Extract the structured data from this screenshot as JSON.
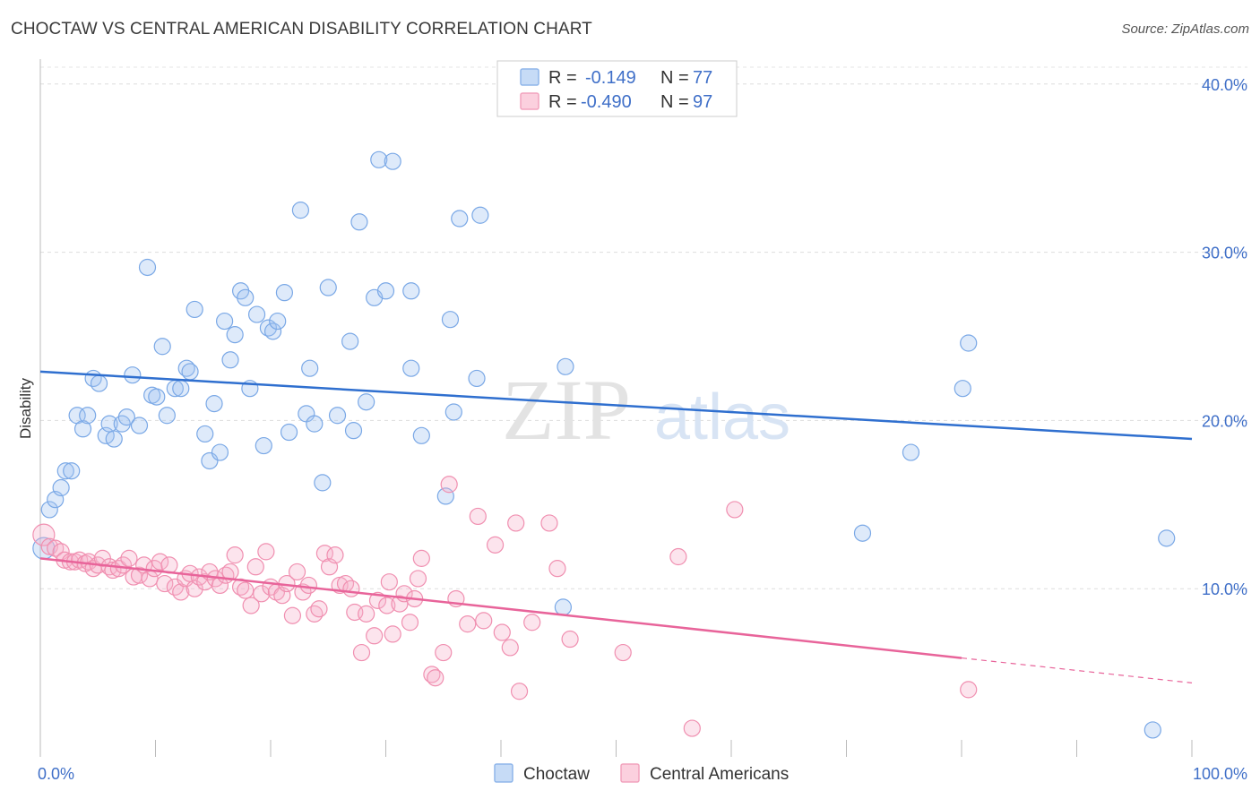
{
  "title": "CHOCTAW VS CENTRAL AMERICAN DISABILITY CORRELATION CHART",
  "source": "Source: ZipAtlas.com",
  "watermark": {
    "zip": "ZIP",
    "atlas": "atlas"
  },
  "legend_box": {
    "rows": [
      {
        "r_label": "R =",
        "r_value": "-0.149",
        "n_label": "N =",
        "n_value": "77",
        "color": "#8fb6ea"
      },
      {
        "r_label": "R =",
        "r_value": "-0.490",
        "n_label": "N =",
        "n_value": "97",
        "color": "#f2a3bd"
      }
    ]
  },
  "bottom_legend": [
    {
      "label": "Choctaw",
      "color": "#8fb6ea"
    },
    {
      "label": "Central Americans",
      "color": "#f2a3bd"
    }
  ],
  "chart_data": {
    "type": "scatter",
    "ylabel": "Disability",
    "xlabel": "",
    "x_tick_labels": [
      "0.0%",
      "100.0%"
    ],
    "y_tick_labels": [
      "10.0%",
      "20.0%",
      "30.0%",
      "40.0%"
    ],
    "xlim": [
      0,
      100
    ],
    "ylim": [
      0,
      41
    ],
    "grid": true,
    "legend_placement": "top-center",
    "series": [
      {
        "name": "Choctaw",
        "color": "#7aa8e6",
        "trend": {
          "x": [
            0,
            100
          ],
          "y": [
            22.9,
            18.9
          ],
          "color": "#2f6fcf"
        },
        "points": [
          [
            0.3,
            12.4
          ],
          [
            0.8,
            14.7
          ],
          [
            1.3,
            15.3
          ],
          [
            1.8,
            16.0
          ],
          [
            2.2,
            17.0
          ],
          [
            2.7,
            17.0
          ],
          [
            3.2,
            20.3
          ],
          [
            3.7,
            19.5
          ],
          [
            4.1,
            20.3
          ],
          [
            4.6,
            22.5
          ],
          [
            5.1,
            22.2
          ],
          [
            5.7,
            19.1
          ],
          [
            6.0,
            19.8
          ],
          [
            6.4,
            18.9
          ],
          [
            7.1,
            19.8
          ],
          [
            7.5,
            20.2
          ],
          [
            8.0,
            22.7
          ],
          [
            8.6,
            19.7
          ],
          [
            9.3,
            29.1
          ],
          [
            9.7,
            21.5
          ],
          [
            10.1,
            21.4
          ],
          [
            10.6,
            24.4
          ],
          [
            11.0,
            20.3
          ],
          [
            11.7,
            21.9
          ],
          [
            12.2,
            21.9
          ],
          [
            12.7,
            23.1
          ],
          [
            13.0,
            22.9
          ],
          [
            13.4,
            26.6
          ],
          [
            14.3,
            19.2
          ],
          [
            14.7,
            17.6
          ],
          [
            15.1,
            21.0
          ],
          [
            15.6,
            18.1
          ],
          [
            16.0,
            25.9
          ],
          [
            16.5,
            23.6
          ],
          [
            16.9,
            25.1
          ],
          [
            17.4,
            27.7
          ],
          [
            17.8,
            27.3
          ],
          [
            18.2,
            21.9
          ],
          [
            18.8,
            26.3
          ],
          [
            19.4,
            18.5
          ],
          [
            19.8,
            25.5
          ],
          [
            20.2,
            25.3
          ],
          [
            20.6,
            25.9
          ],
          [
            21.2,
            27.6
          ],
          [
            21.6,
            19.3
          ],
          [
            22.6,
            32.5
          ],
          [
            23.1,
            20.4
          ],
          [
            23.4,
            23.1
          ],
          [
            23.8,
            19.8
          ],
          [
            24.5,
            16.3
          ],
          [
            25.0,
            27.9
          ],
          [
            25.8,
            20.3
          ],
          [
            26.9,
            24.7
          ],
          [
            27.2,
            19.4
          ],
          [
            27.7,
            31.8
          ],
          [
            28.3,
            21.1
          ],
          [
            29.0,
            27.3
          ],
          [
            29.4,
            35.5
          ],
          [
            30.0,
            27.7
          ],
          [
            30.6,
            35.4
          ],
          [
            32.2,
            27.7
          ],
          [
            32.2,
            23.1
          ],
          [
            33.1,
            19.1
          ],
          [
            35.2,
            15.5
          ],
          [
            35.6,
            26.0
          ],
          [
            35.9,
            20.5
          ],
          [
            36.4,
            32.0
          ],
          [
            37.9,
            22.5
          ],
          [
            38.2,
            32.2
          ],
          [
            45.6,
            23.2
          ],
          [
            45.4,
            8.9
          ],
          [
            71.4,
            13.3
          ],
          [
            75.6,
            18.1
          ],
          [
            80.1,
            21.9
          ],
          [
            80.6,
            24.6
          ],
          [
            96.6,
            1.6
          ],
          [
            97.8,
            13.0
          ]
        ]
      },
      {
        "name": "Central Americans",
        "color": "#f08fb0",
        "trend": {
          "x": [
            0,
            100
          ],
          "y": [
            11.8,
            4.4
          ],
          "color": "#e8649a",
          "solid_until_x": 80
        },
        "points": [
          [
            0.3,
            13.2
          ],
          [
            0.8,
            12.5
          ],
          [
            1.3,
            12.4
          ],
          [
            1.8,
            12.2
          ],
          [
            2.1,
            11.7
          ],
          [
            2.6,
            11.6
          ],
          [
            3.0,
            11.6
          ],
          [
            3.4,
            11.7
          ],
          [
            3.9,
            11.5
          ],
          [
            4.2,
            11.6
          ],
          [
            4.6,
            11.2
          ],
          [
            5.0,
            11.4
          ],
          [
            5.4,
            11.8
          ],
          [
            6.0,
            11.3
          ],
          [
            6.3,
            11.1
          ],
          [
            6.8,
            11.2
          ],
          [
            7.2,
            11.4
          ],
          [
            7.7,
            11.8
          ],
          [
            8.1,
            10.7
          ],
          [
            8.6,
            10.8
          ],
          [
            9.0,
            11.4
          ],
          [
            9.5,
            10.6
          ],
          [
            9.9,
            11.2
          ],
          [
            10.4,
            11.6
          ],
          [
            10.8,
            10.3
          ],
          [
            11.2,
            11.4
          ],
          [
            11.7,
            10.1
          ],
          [
            12.2,
            9.8
          ],
          [
            12.6,
            10.6
          ],
          [
            13.0,
            10.9
          ],
          [
            13.4,
            10.0
          ],
          [
            13.8,
            10.7
          ],
          [
            14.3,
            10.4
          ],
          [
            14.7,
            11.0
          ],
          [
            15.2,
            10.6
          ],
          [
            15.6,
            10.2
          ],
          [
            16.1,
            10.8
          ],
          [
            16.5,
            11.0
          ],
          [
            16.9,
            12.0
          ],
          [
            17.4,
            10.1
          ],
          [
            17.8,
            9.9
          ],
          [
            18.3,
            9.0
          ],
          [
            18.7,
            11.3
          ],
          [
            19.2,
            9.7
          ],
          [
            19.6,
            12.2
          ],
          [
            20.0,
            10.1
          ],
          [
            20.5,
            9.8
          ],
          [
            21.0,
            9.6
          ],
          [
            21.4,
            10.3
          ],
          [
            21.9,
            8.4
          ],
          [
            22.3,
            11.0
          ],
          [
            22.8,
            9.8
          ],
          [
            23.3,
            10.2
          ],
          [
            23.8,
            8.5
          ],
          [
            24.2,
            8.8
          ],
          [
            24.7,
            12.1
          ],
          [
            25.1,
            11.3
          ],
          [
            25.6,
            12.0
          ],
          [
            26.0,
            10.2
          ],
          [
            26.5,
            10.3
          ],
          [
            27.0,
            10.0
          ],
          [
            27.3,
            8.6
          ],
          [
            27.9,
            6.2
          ],
          [
            28.3,
            8.5
          ],
          [
            29.0,
            7.2
          ],
          [
            29.3,
            9.3
          ],
          [
            30.1,
            9.0
          ],
          [
            30.3,
            10.4
          ],
          [
            30.6,
            7.3
          ],
          [
            31.2,
            9.1
          ],
          [
            31.6,
            9.7
          ],
          [
            32.1,
            8.0
          ],
          [
            32.5,
            9.4
          ],
          [
            32.8,
            10.6
          ],
          [
            33.1,
            11.8
          ],
          [
            34.0,
            4.9
          ],
          [
            34.3,
            4.7
          ],
          [
            35.0,
            6.2
          ],
          [
            35.5,
            16.2
          ],
          [
            36.1,
            9.4
          ],
          [
            37.1,
            7.9
          ],
          [
            38.0,
            14.3
          ],
          [
            38.5,
            8.1
          ],
          [
            39.5,
            12.6
          ],
          [
            40.1,
            7.4
          ],
          [
            40.8,
            6.5
          ],
          [
            41.3,
            13.9
          ],
          [
            41.6,
            3.9
          ],
          [
            42.7,
            8.0
          ],
          [
            44.2,
            13.9
          ],
          [
            44.9,
            11.2
          ],
          [
            46.0,
            7.0
          ],
          [
            50.6,
            6.2
          ],
          [
            55.4,
            11.9
          ],
          [
            56.6,
            1.7
          ],
          [
            60.3,
            14.7
          ],
          [
            80.6,
            4.0
          ]
        ]
      }
    ]
  }
}
